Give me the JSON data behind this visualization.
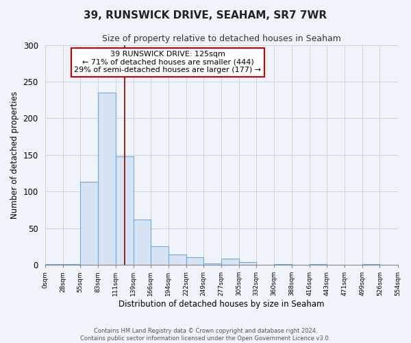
{
  "title": "39, RUNSWICK DRIVE, SEAHAM, SR7 7WR",
  "subtitle": "Size of property relative to detached houses in Seaham",
  "xlabel": "Distribution of detached houses by size in Seaham",
  "ylabel": "Number of detached properties",
  "bar_edges": [
    0,
    28,
    55,
    83,
    111,
    139,
    166,
    194,
    222,
    249,
    277,
    305,
    332,
    360,
    388,
    416,
    443,
    471,
    499,
    526,
    554
  ],
  "bar_heights": [
    1,
    1,
    113,
    235,
    148,
    62,
    25,
    14,
    10,
    2,
    8,
    4,
    0,
    1,
    0,
    1,
    0,
    0,
    1,
    0
  ],
  "bar_color": "#d6e4f5",
  "bar_edgecolor": "#6fa8d6",
  "property_line_x": 125,
  "property_line_color": "#8b0000",
  "annotation_line1": "39 RUNSWICK DRIVE: 125sqm",
  "annotation_line2": "← 71% of detached houses are smaller (444)",
  "annotation_line3": "29% of semi-detached houses are larger (177) →",
  "box_edgecolor": "#cc0000",
  "ylim": [
    0,
    300
  ],
  "yticks": [
    0,
    50,
    100,
    150,
    200,
    250,
    300
  ],
  "tick_labels": [
    "0sqm",
    "28sqm",
    "55sqm",
    "83sqm",
    "111sqm",
    "139sqm",
    "166sqm",
    "194sqm",
    "222sqm",
    "249sqm",
    "277sqm",
    "305sqm",
    "332sqm",
    "360sqm",
    "388sqm",
    "416sqm",
    "443sqm",
    "471sqm",
    "499sqm",
    "526sqm",
    "554sqm"
  ],
  "footer_line1": "Contains HM Land Registry data © Crown copyright and database right 2024.",
  "footer_line2": "Contains public sector information licensed under the Open Government Licence v3.0.",
  "background_color": "#f0f4fa",
  "plot_bg_color": "#f0f4fa",
  "grid_color": "#c8d4e8",
  "title_fontsize": 11,
  "subtitle_fontsize": 9
}
